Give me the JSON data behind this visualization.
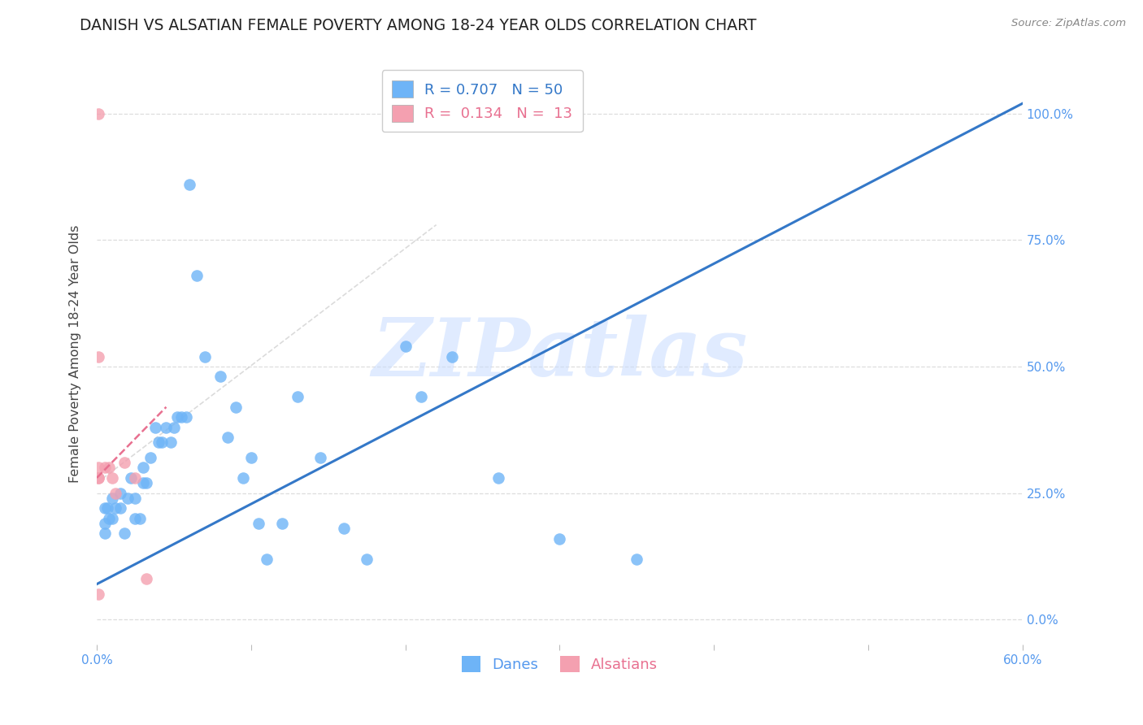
{
  "title": "DANISH VS ALSATIAN FEMALE POVERTY AMONG 18-24 YEAR OLDS CORRELATION CHART",
  "source": "Source: ZipAtlas.com",
  "ylabel": "Female Poverty Among 18-24 Year Olds",
  "xlim": [
    0.0,
    0.6
  ],
  "ylim": [
    -0.05,
    1.1
  ],
  "yticks": [
    0.0,
    0.25,
    0.5,
    0.75,
    1.0
  ],
  "ytick_labels": [
    "0.0%",
    "25.0%",
    "50.0%",
    "75.0%",
    "100.0%"
  ],
  "xtick_positions": [
    0.0,
    0.1,
    0.2,
    0.3,
    0.4,
    0.5,
    0.6
  ],
  "xtick_labels": [
    "0.0%",
    "",
    "",
    "",
    "",
    "",
    "60.0%"
  ],
  "dane_R": 0.707,
  "dane_N": 50,
  "alsatian_R": 0.134,
  "alsatian_N": 13,
  "blue_color": "#6EB4F7",
  "pink_color": "#F4A0B0",
  "line_blue": "#3478C8",
  "line_pink": "#E87090",
  "watermark": "ZIPatlas",
  "watermark_color": "#C8DCFF",
  "danes_x": [
    0.005,
    0.005,
    0.005,
    0.007,
    0.008,
    0.01,
    0.01,
    0.012,
    0.015,
    0.015,
    0.018,
    0.02,
    0.022,
    0.025,
    0.025,
    0.028,
    0.03,
    0.03,
    0.032,
    0.035,
    0.038,
    0.04,
    0.042,
    0.045,
    0.048,
    0.05,
    0.052,
    0.055,
    0.058,
    0.06,
    0.065,
    0.07,
    0.08,
    0.085,
    0.09,
    0.095,
    0.1,
    0.105,
    0.11,
    0.12,
    0.13,
    0.145,
    0.16,
    0.175,
    0.2,
    0.21,
    0.23,
    0.26,
    0.3,
    0.35
  ],
  "danes_y": [
    0.22,
    0.19,
    0.17,
    0.22,
    0.2,
    0.24,
    0.2,
    0.22,
    0.25,
    0.22,
    0.17,
    0.24,
    0.28,
    0.2,
    0.24,
    0.2,
    0.27,
    0.3,
    0.27,
    0.32,
    0.38,
    0.35,
    0.35,
    0.38,
    0.35,
    0.38,
    0.4,
    0.4,
    0.4,
    0.86,
    0.68,
    0.52,
    0.48,
    0.36,
    0.42,
    0.28,
    0.32,
    0.19,
    0.12,
    0.19,
    0.44,
    0.32,
    0.18,
    0.12,
    0.54,
    0.44,
    0.52,
    0.28,
    0.16,
    0.12
  ],
  "alsatians_x": [
    0.001,
    0.001,
    0.001,
    0.001,
    0.001,
    0.001,
    0.005,
    0.008,
    0.01,
    0.012,
    0.018,
    0.025,
    0.032
  ],
  "alsatians_y": [
    1.0,
    0.52,
    0.3,
    0.28,
    0.28,
    0.05,
    0.3,
    0.3,
    0.28,
    0.25,
    0.31,
    0.28,
    0.08
  ],
  "dane_line_x": [
    0.0,
    0.6
  ],
  "dane_line_y": [
    0.07,
    1.02
  ],
  "alsatian_line_x": [
    0.0,
    0.045
  ],
  "alsatian_line_y": [
    0.28,
    0.42
  ],
  "bg_color": "#FFFFFF",
  "axis_color": "#BBBBBB",
  "grid_color": "#DDDDDD",
  "title_color": "#222222",
  "right_label_color": "#5599EE",
  "title_fontsize": 13.5,
  "label_fontsize": 11.5,
  "tick_fontsize": 11,
  "legend_fontsize": 13
}
